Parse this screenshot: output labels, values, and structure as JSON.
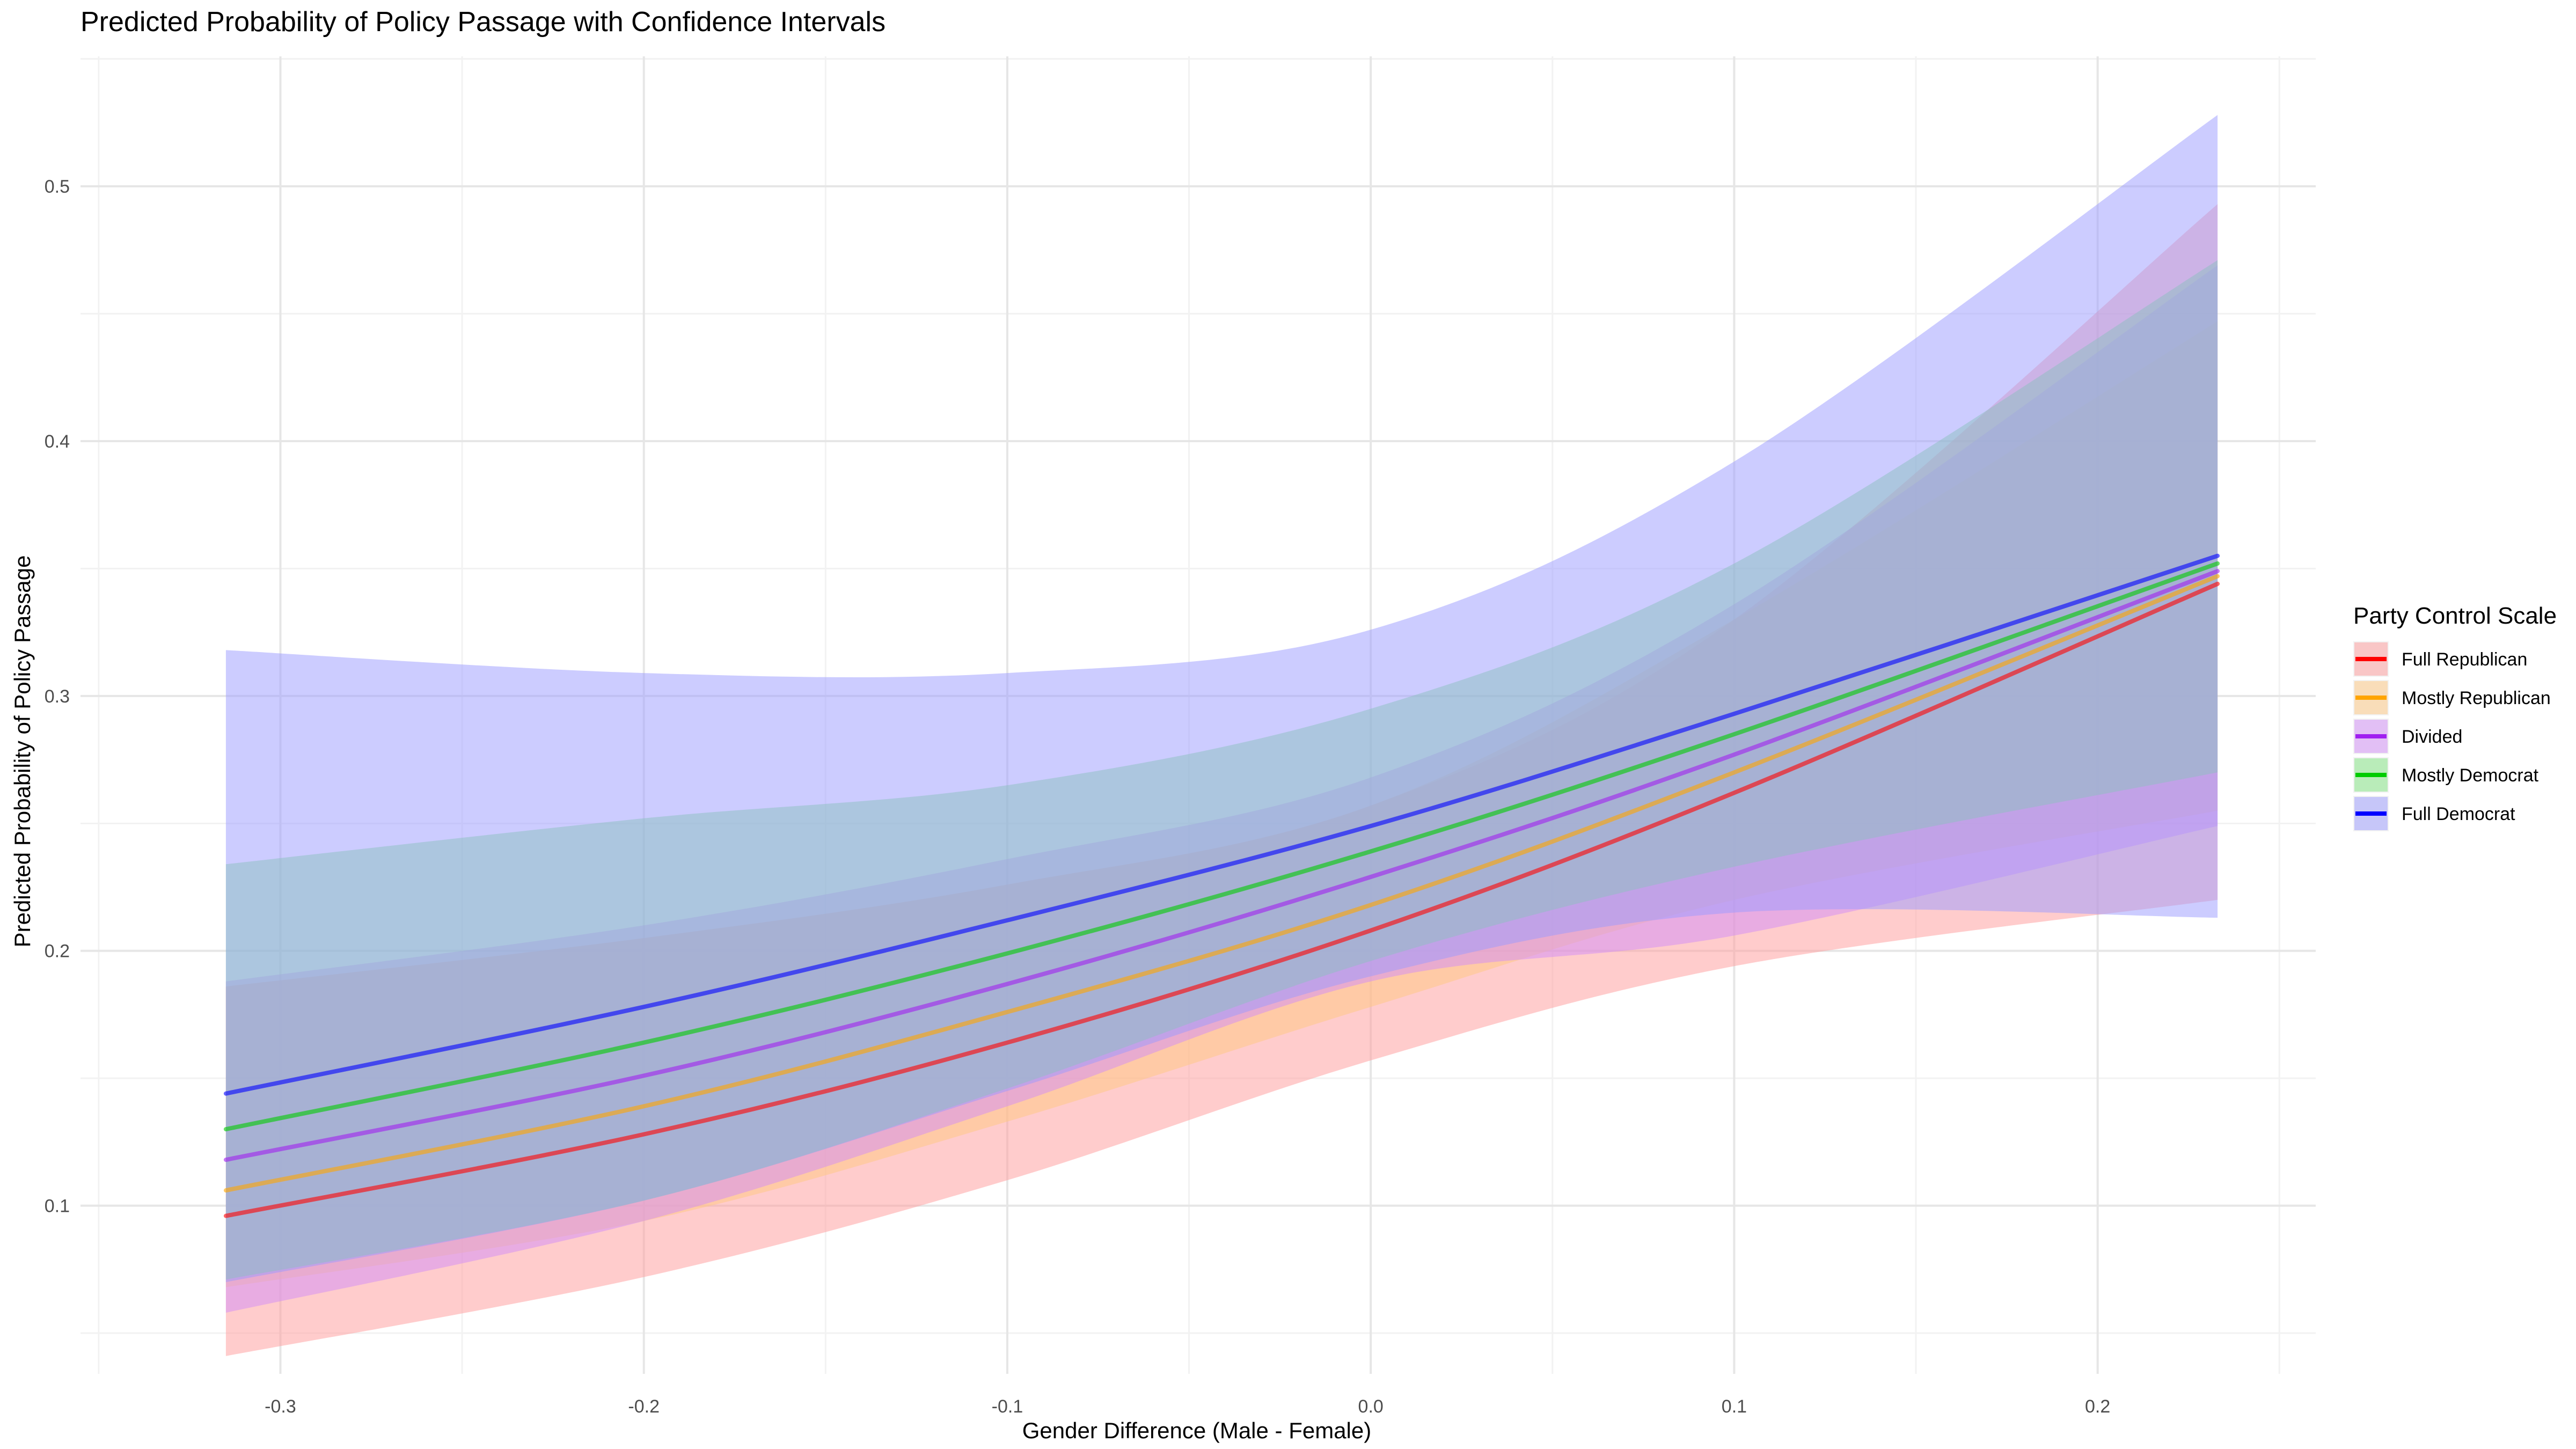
{
  "chart_data": {
    "type": "line",
    "title": "Predicted Probability of Policy Passage with Confidence Intervals",
    "xlabel": "Gender Difference (Male - Female)",
    "ylabel": "Predicted Probability of Policy Passage",
    "xlim": [
      -0.355,
      0.26
    ],
    "ylim": [
      0.034,
      0.551
    ],
    "x_ticks": [
      -0.3,
      -0.2,
      -0.1,
      0.0,
      0.1,
      0.2
    ],
    "x_tick_labels": [
      "-0.3",
      "-0.2",
      "-0.1",
      "0.0",
      "0.1",
      "0.2"
    ],
    "y_ticks": [
      0.1,
      0.2,
      0.3,
      0.4,
      0.5
    ],
    "y_tick_labels": [
      "0.1",
      "0.2",
      "0.3",
      "0.4",
      "0.5"
    ],
    "grid": true,
    "legend": {
      "title": "Party Control Scale",
      "position": "right"
    },
    "x": [
      -0.315,
      -0.2,
      -0.1,
      0.0,
      0.1,
      0.233
    ],
    "series": [
      {
        "name": "Full Republican",
        "color": "#FF0000",
        "band_color": "#FF9999",
        "values": [
          0.096,
          0.128,
          0.164,
          0.208,
          0.262,
          0.344
        ],
        "lower": [
          0.041,
          0.072,
          0.11,
          0.157,
          0.194,
          0.22
        ],
        "upper": [
          0.186,
          0.205,
          0.226,
          0.257,
          0.33,
          0.493
        ]
      },
      {
        "name": "Mostly Republican",
        "color": "#FFA500",
        "band_color": "#FFC77F",
        "values": [
          0.106,
          0.139,
          0.176,
          0.218,
          0.27,
          0.347
        ],
        "lower": [
          0.068,
          0.094,
          0.133,
          0.178,
          0.22,
          0.255
        ],
        "upper": [
          0.186,
          0.205,
          0.226,
          0.257,
          0.33,
          0.447
        ]
      },
      {
        "name": "Divided",
        "color": "#A020F0",
        "band_color": "#D28CF7",
        "values": [
          0.118,
          0.151,
          0.187,
          0.229,
          0.277,
          0.349
        ],
        "lower": [
          0.058,
          0.094,
          0.139,
          0.188,
          0.206,
          0.249
        ],
        "upper": [
          0.188,
          0.21,
          0.236,
          0.268,
          0.336,
          0.469
        ]
      },
      {
        "name": "Mostly Democrat",
        "color": "#00CC00",
        "band_color": "#7FE57F",
        "values": [
          0.13,
          0.164,
          0.199,
          0.239,
          0.285,
          0.352
        ],
        "lower": [
          0.071,
          0.102,
          0.146,
          0.196,
          0.233,
          0.27
        ],
        "upper": [
          0.234,
          0.252,
          0.265,
          0.295,
          0.352,
          0.471
        ]
      },
      {
        "name": "Full Democrat",
        "color": "#0000FF",
        "band_color": "#9999FF",
        "values": [
          0.144,
          0.178,
          0.212,
          0.249,
          0.293,
          0.355
        ],
        "lower": [
          0.07,
          0.102,
          0.145,
          0.19,
          0.215,
          0.213
        ],
        "upper": [
          0.318,
          0.309,
          0.309,
          0.326,
          0.392,
          0.528
        ]
      }
    ]
  }
}
